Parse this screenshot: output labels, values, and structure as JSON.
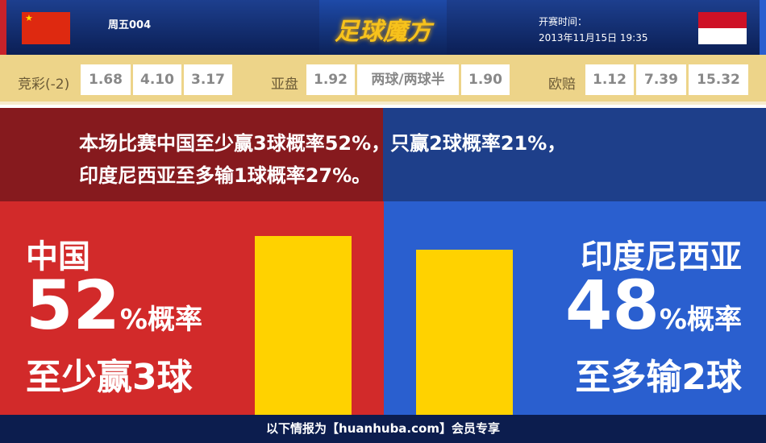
{
  "header": {
    "match_no": "周五004",
    "logo": "足球魔方",
    "time_label": "开赛时间：",
    "time_value": "2013年11月15日 19:35",
    "home_flag": "china-flag",
    "away_flag": "indonesia-flag"
  },
  "odds": {
    "jingcai": {
      "label": "竞彩(-2)",
      "values": [
        "1.68",
        "4.10",
        "3.17"
      ]
    },
    "yapan": {
      "label": "亚盘",
      "values": [
        "1.92",
        "两球/两球半",
        "1.90"
      ]
    },
    "oupei": {
      "label": "欧赔",
      "values": [
        "1.12",
        "7.39",
        "15.32"
      ]
    }
  },
  "message": {
    "line1": "本场比赛中国至少赢3球概率52%，只赢2球概率21%，",
    "line2": "印度尼西亚至多输1球概率27%。"
  },
  "home": {
    "team": "中国",
    "percent": 52,
    "percent_text": "52",
    "suffix": "%概率",
    "desc": "至少赢3球",
    "color": "#d22a2a"
  },
  "away": {
    "team": "印度尼西亚",
    "percent": 48,
    "percent_text": "48",
    "suffix": "%概率",
    "desc": "至多输2球",
    "color": "#2a5fcf"
  },
  "bar_color": "#ffd200",
  "footer": "以下情报为【huanhuba.com】会员专享"
}
